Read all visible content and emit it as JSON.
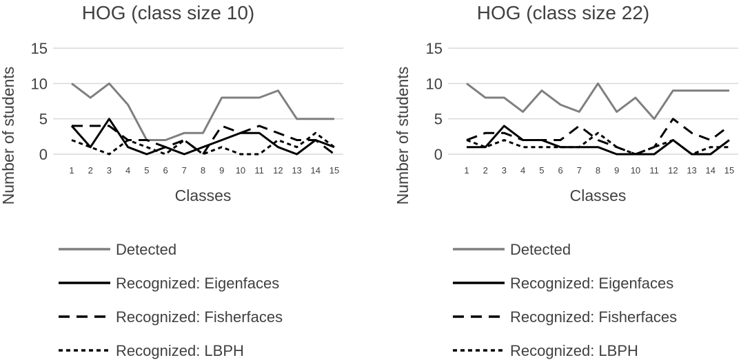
{
  "chart_data": [
    {
      "type": "line",
      "title": "HOG (class size 10)",
      "xlabel": "Classes",
      "ylabel": "Number of students",
      "ylim": [
        0,
        15
      ],
      "yticks": [
        0,
        5,
        10,
        15
      ],
      "grid": true,
      "legend_position": "bottom",
      "categories": [
        "1",
        "2",
        "3",
        "4",
        "5",
        "6",
        "7",
        "8",
        "9",
        "10",
        "11",
        "12",
        "13",
        "14",
        "15"
      ],
      "series": [
        {
          "name": "Detected",
          "color": "#7f7f7f",
          "dash": "solid",
          "values": [
            10,
            8,
            10,
            7,
            2,
            2,
            3,
            3,
            8,
            8,
            8,
            9,
            5,
            5,
            5
          ]
        },
        {
          "name": "Recognized: Eigenfaces",
          "color": "#000000",
          "dash": "solid",
          "values": [
            4,
            1,
            5,
            1,
            0,
            1,
            0,
            1,
            2,
            3,
            3,
            1,
            0,
            2,
            1
          ]
        },
        {
          "name": "Recognized: Fisherfaces",
          "color": "#000000",
          "dash": "long",
          "values": [
            4,
            4,
            4,
            2,
            2,
            1,
            2,
            0,
            4,
            3,
            4,
            3,
            2,
            2,
            0
          ]
        },
        {
          "name": "Recognized: LBPH",
          "color": "#000000",
          "dash": "short",
          "values": [
            2,
            1,
            0,
            2,
            1,
            0,
            2,
            0,
            1,
            0,
            0,
            2,
            1,
            3,
            1
          ]
        }
      ]
    },
    {
      "type": "line",
      "title": "HOG (class size 22)",
      "xlabel": "Classes",
      "ylabel": "Number of students",
      "ylim": [
        0,
        15
      ],
      "yticks": [
        0,
        5,
        10,
        15
      ],
      "grid": true,
      "legend_position": "bottom",
      "categories": [
        "1",
        "2",
        "3",
        "4",
        "5",
        "6",
        "7",
        "8",
        "9",
        "10",
        "11",
        "12",
        "13",
        "14",
        "15"
      ],
      "series": [
        {
          "name": "Detected",
          "color": "#7f7f7f",
          "dash": "solid",
          "values": [
            10,
            8,
            8,
            6,
            9,
            7,
            6,
            10,
            6,
            8,
            5,
            9,
            9,
            9,
            9
          ]
        },
        {
          "name": "Recognized: Eigenfaces",
          "color": "#000000",
          "dash": "solid",
          "values": [
            1,
            1,
            4,
            2,
            2,
            1,
            1,
            1,
            0,
            0,
            0,
            2,
            0,
            0,
            2
          ]
        },
        {
          "name": "Recognized: Fisherfaces",
          "color": "#000000",
          "dash": "long",
          "values": [
            2,
            3,
            3,
            2,
            2,
            2,
            4,
            2,
            1,
            0,
            1,
            5,
            3,
            2,
            4
          ]
        },
        {
          "name": "Recognized: LBPH",
          "color": "#000000",
          "dash": "short",
          "values": [
            2,
            1,
            2,
            1,
            1,
            1,
            1,
            3,
            1,
            0,
            1,
            2,
            0,
            1,
            1
          ]
        }
      ]
    }
  ]
}
